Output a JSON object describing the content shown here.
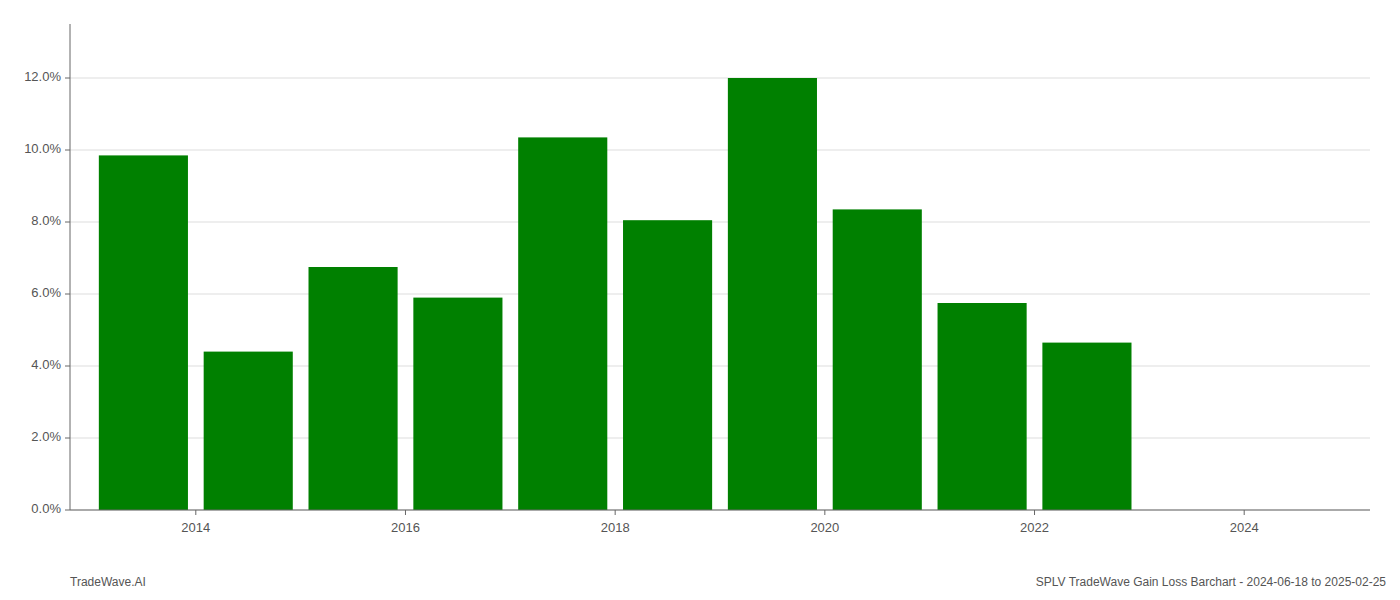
{
  "chart_data": {
    "type": "bar",
    "x": [
      2013.5,
      2014.5,
      2015.5,
      2016.5,
      2017.5,
      2018.5,
      2019.5,
      2020.5,
      2021.5,
      2022.5
    ],
    "values": [
      0.0985,
      0.044,
      0.0675,
      0.059,
      0.1035,
      0.0805,
      0.12,
      0.0835,
      0.0575,
      0.0465
    ],
    "color": "#008000",
    "xlim": [
      2012.8,
      2025.2
    ],
    "xticks": [
      2014,
      2016,
      2018,
      2020,
      2022,
      2024
    ],
    "ylim": [
      0,
      0.135
    ],
    "yticks": [
      {
        "value": 0.0,
        "label": "0.0%"
      },
      {
        "value": 0.02,
        "label": "2.0%"
      },
      {
        "value": 0.04,
        "label": "4.0%"
      },
      {
        "value": 0.06,
        "label": "6.0%"
      },
      {
        "value": 0.08,
        "label": "8.0%"
      },
      {
        "value": 0.1,
        "label": "10.0%"
      },
      {
        "value": 0.12,
        "label": "12.0%"
      }
    ],
    "grid": true,
    "annotations": [
      "TradeWave.AI",
      "SPLV TradeWave Gain Loss Barchart - 2024-06-18 to 2025-02-25"
    ]
  }
}
